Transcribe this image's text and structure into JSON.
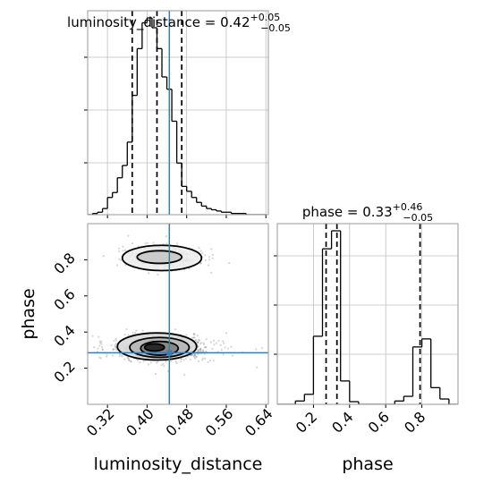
{
  "chart_data": {
    "type": "corner",
    "truth": {
      "luminosity_distance": 0.445,
      "phase": 0.285
    },
    "luminosity_distance": {
      "title_main": "luminosity_distance = 0.42",
      "title_sup": "+0.05",
      "title_sub": "−0.05",
      "xlabel": "luminosity_distance",
      "xlim": [
        0.28,
        0.645
      ],
      "ticks": [
        0.32,
        0.4,
        0.48,
        0.56,
        0.64
      ],
      "tick_labels": [
        "0.32",
        "0.40",
        "0.48",
        "0.56",
        "0.64"
      ],
      "quantiles": [
        0.37,
        0.42,
        0.47
      ],
      "hist_edges": [
        0.28,
        0.29,
        0.3,
        0.31,
        0.32,
        0.33,
        0.34,
        0.35,
        0.36,
        0.37,
        0.38,
        0.39,
        0.4,
        0.41,
        0.42,
        0.43,
        0.44,
        0.45,
        0.46,
        0.47,
        0.48,
        0.49,
        0.5,
        0.51,
        0.52,
        0.53,
        0.54,
        0.55,
        0.56,
        0.57,
        0.58,
        0.59,
        0.6,
        0.61,
        0.62,
        0.63,
        0.64
      ],
      "hist_counts": [
        0,
        1,
        2,
        5,
        14,
        18,
        30,
        40,
        59,
        97,
        135,
        156,
        160,
        152,
        135,
        112,
        102,
        76,
        42,
        23,
        19,
        14,
        10,
        7,
        5,
        4,
        3,
        2,
        2,
        1,
        1,
        1,
        0,
        0,
        0,
        0
      ]
    },
    "phase": {
      "title_main": "phase = 0.33",
      "title_sup": "+0.46",
      "title_sub": "−0.05",
      "xlabel": "phase",
      "ylabel": "phase",
      "lim": [
        0.0,
        1.0
      ],
      "ticks": [
        0.2,
        0.4,
        0.6,
        0.8
      ],
      "tick_labels": [
        "0.2",
        "0.4",
        "0.6",
        "0.8"
      ],
      "quantiles": [
        0.27,
        0.33,
        0.79
      ],
      "hist_edges": [
        0.0,
        0.05,
        0.1,
        0.15,
        0.2,
        0.25,
        0.3,
        0.35,
        0.4,
        0.45,
        0.5,
        0.55,
        0.6,
        0.65,
        0.7,
        0.75,
        0.8,
        0.85,
        0.9,
        0.95,
        1.0
      ],
      "hist_counts": [
        0,
        0,
        5,
        15,
        102,
        233,
        260,
        35,
        4,
        0,
        0,
        0,
        0,
        5,
        12,
        86,
        98,
        25,
        8,
        0
      ]
    },
    "joint": {
      "blobs": [
        {
          "cx": 0.43,
          "cy": 0.31,
          "sx": 0.045,
          "sy": 0.035,
          "weight": 0.72
        },
        {
          "cx": 0.425,
          "cy": 0.815,
          "sx": 0.035,
          "sy": 0.03,
          "weight": 0.28
        }
      ],
      "contours_lower": [
        {
          "level": 1,
          "cx": 0.42,
          "cy": 0.32,
          "rx": 0.08,
          "ry": 0.075
        },
        {
          "level": 2,
          "cx": 0.425,
          "cy": 0.315,
          "rx": 0.06,
          "ry": 0.055
        },
        {
          "level": 3,
          "cx": 0.425,
          "cy": 0.31,
          "rx": 0.038,
          "ry": 0.038
        },
        {
          "level": 4,
          "cx": 0.415,
          "cy": 0.315,
          "rx": 0.02,
          "ry": 0.02
        }
      ],
      "contours_upper": [
        {
          "level": 1,
          "cx": 0.43,
          "cy": 0.81,
          "rx": 0.08,
          "ry": 0.07
        },
        {
          "level": 2,
          "cx": 0.425,
          "cy": 0.815,
          "rx": 0.045,
          "ry": 0.035
        }
      ]
    },
    "colors": {
      "truth": "#3a7bb8",
      "hist": "#000000",
      "contour": "#000000",
      "grid": "#bfbfbf",
      "frame": "#999999"
    }
  }
}
